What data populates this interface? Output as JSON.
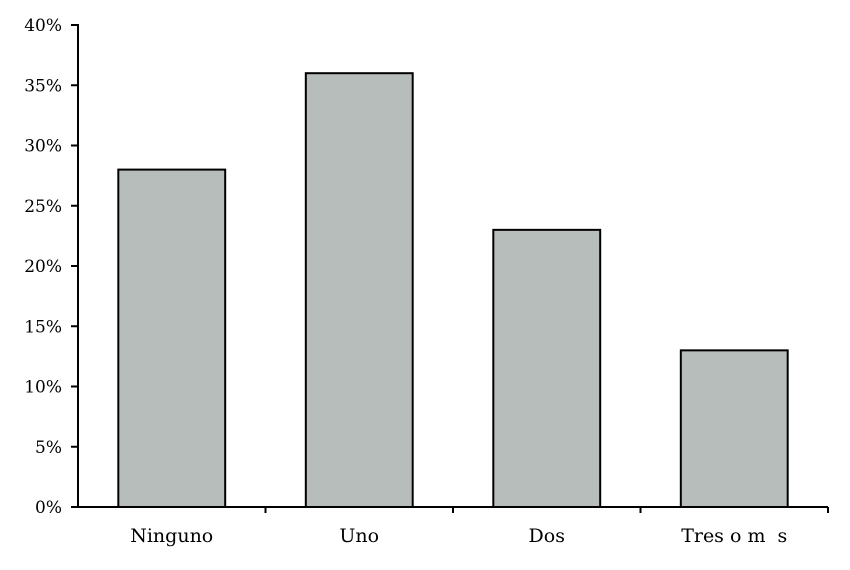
{
  "chart_data": {
    "type": "bar",
    "categories": [
      "Ninguno",
      "Uno",
      "Dos",
      "Tres o m  s"
    ],
    "values": [
      28,
      36,
      23,
      13
    ],
    "value_unit": "%",
    "title": "",
    "xlabel": "",
    "ylabel": "",
    "ylim": [
      0,
      40
    ],
    "ytick_step": 5,
    "ytick_labels": [
      "0%",
      "5%",
      "10%",
      "15%",
      "20%",
      "25%",
      "30%",
      "35%",
      "40%"
    ],
    "grid": false,
    "legend": "none",
    "bar_color": "#b7bdba",
    "edge_color": "#000000"
  }
}
